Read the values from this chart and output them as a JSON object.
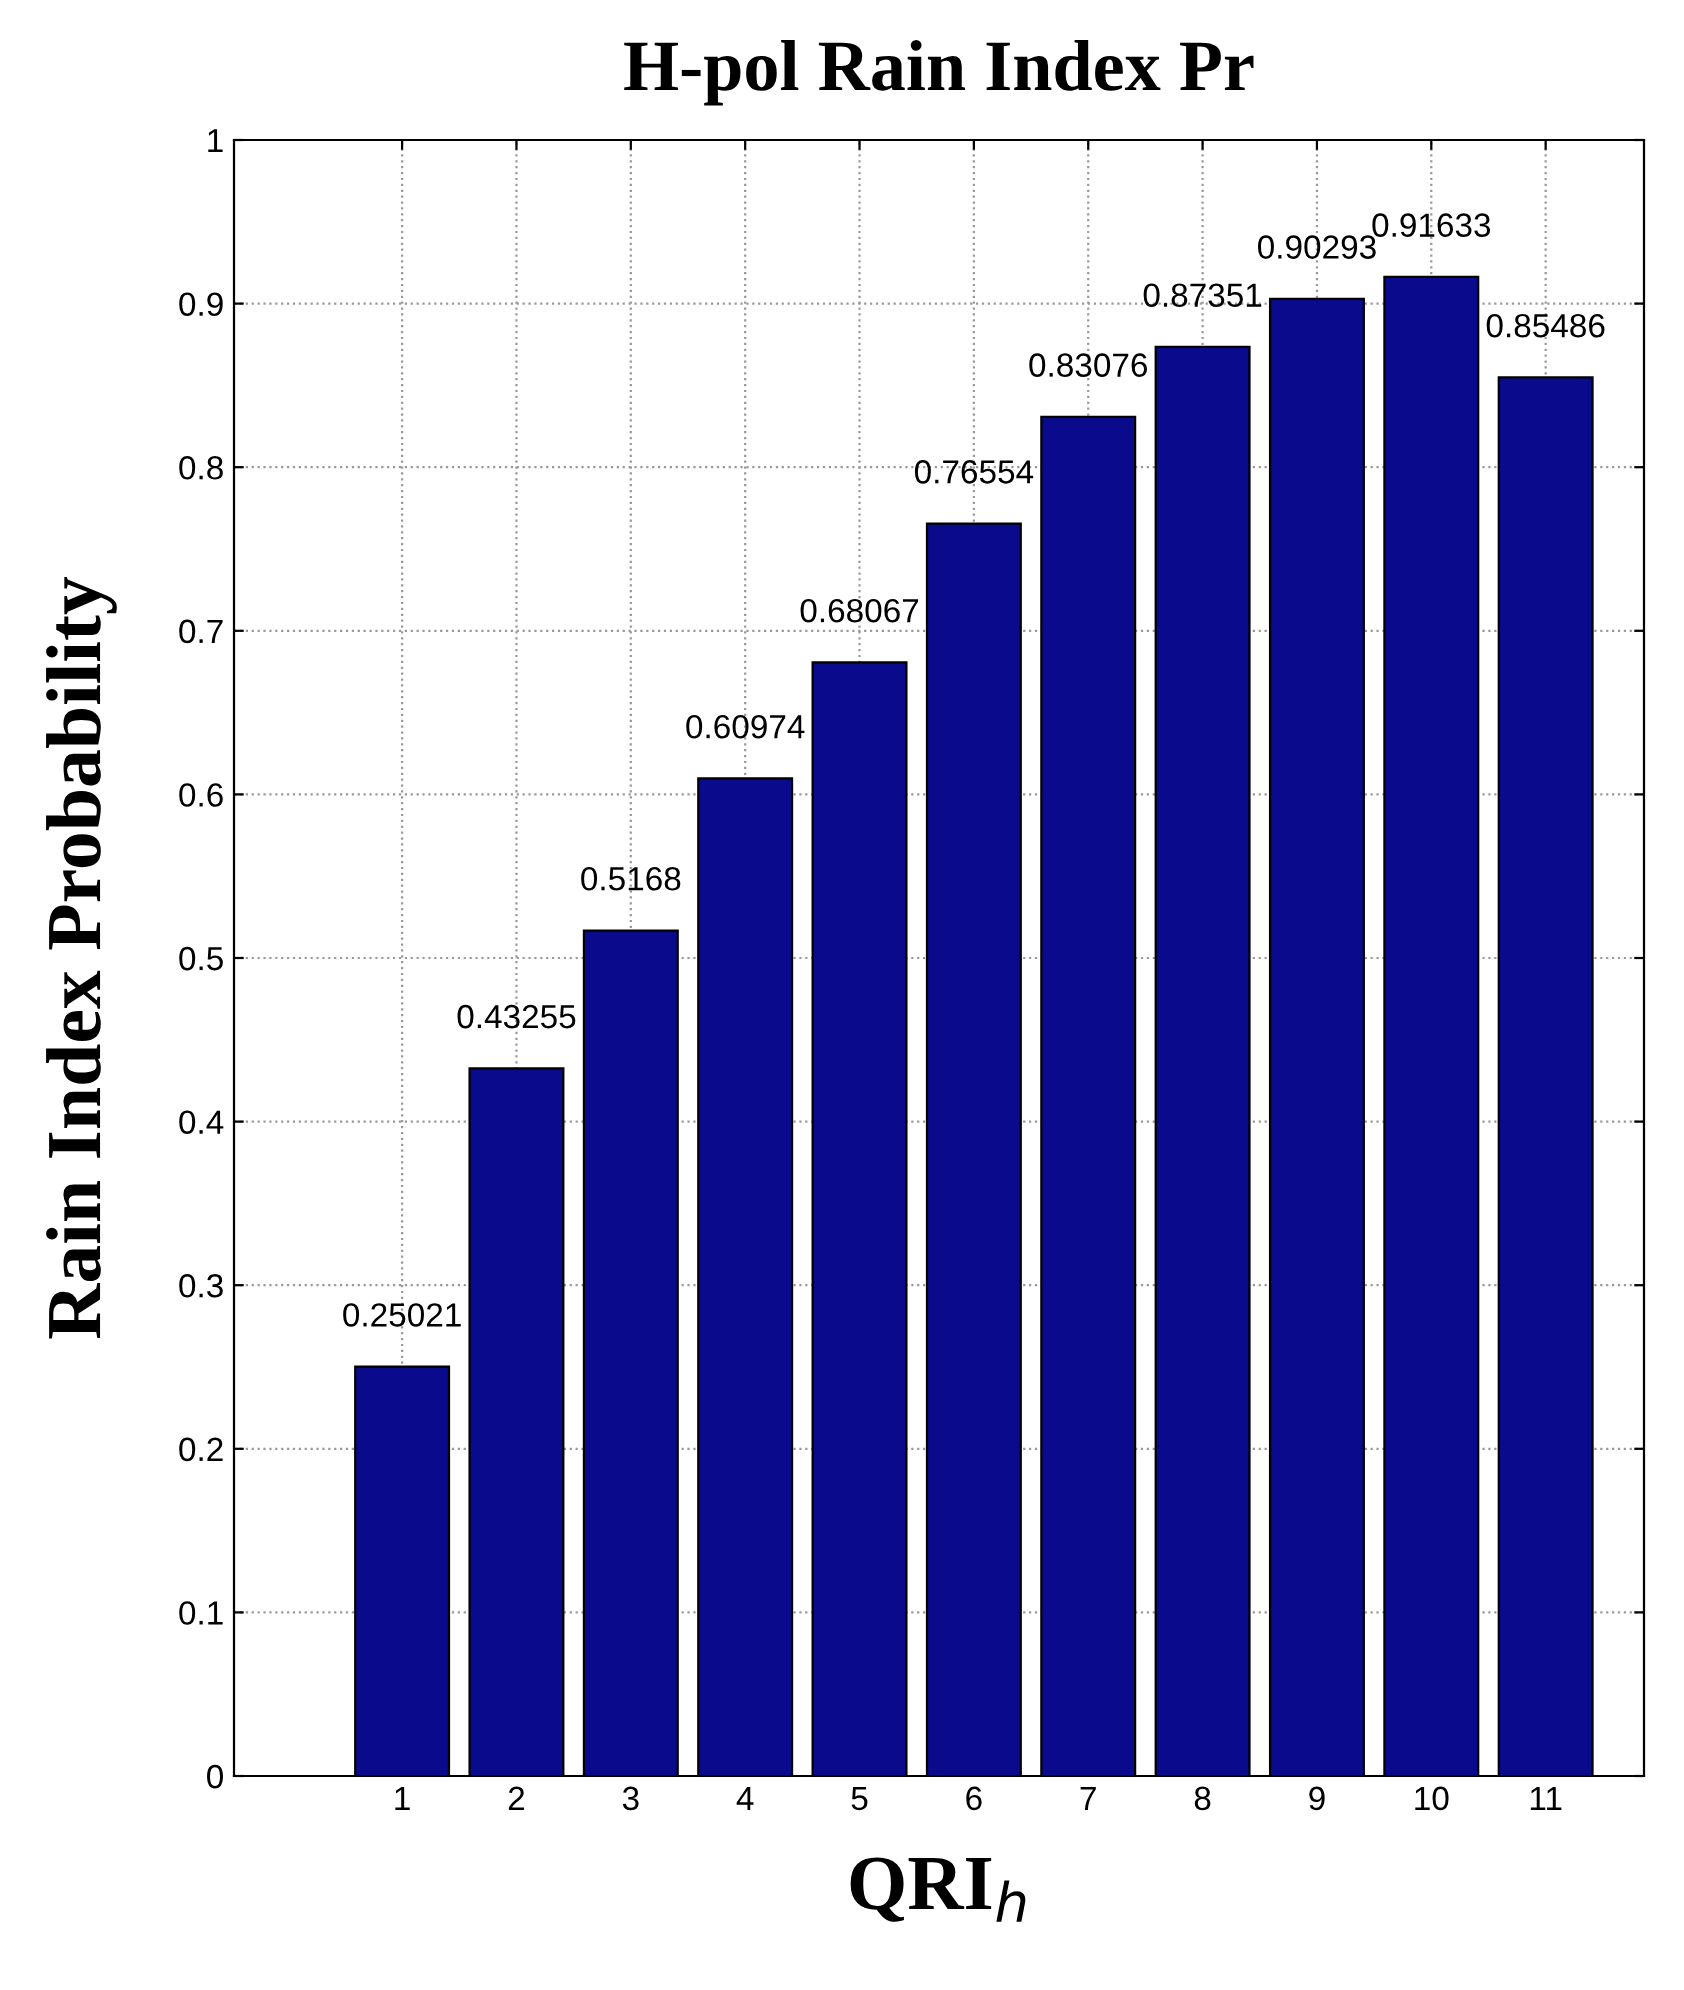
{
  "chart_data": {
    "type": "bar",
    "title": "H-pol Rain Index Pr",
    "xlabel": "QRI$_{h}$",
    "ylabel": "Rain Index Probability",
    "categories": [
      "1",
      "2",
      "3",
      "4",
      "5",
      "6",
      "7",
      "8",
      "9",
      "10",
      "11"
    ],
    "values": [
      0.25021,
      0.43255,
      0.5168,
      0.60974,
      0.68067,
      0.76554,
      0.83076,
      0.87351,
      0.90293,
      0.91633,
      0.85486
    ],
    "color": "#0a0a8c",
    "ylim": [
      0,
      1
    ],
    "yticks": [
      0,
      0.1,
      0.2,
      0.3,
      0.4,
      0.5,
      0.6,
      0.7,
      0.8,
      0.9,
      1
    ],
    "grid": true,
    "data_labels": true
  }
}
